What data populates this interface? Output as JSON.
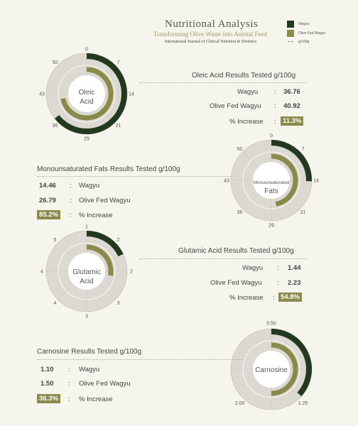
{
  "header": {
    "title": "Nutritional Analysis",
    "subtitle": "Transforming Olive Waste into Animal Feed",
    "journal": "International Journal of Clinical Nutrition & Dietetics"
  },
  "legend": {
    "wagyu": "Wagyu",
    "olive": "Olive Fed Wagyu",
    "unit": "g/100g",
    "wagyu_color": "#23391f",
    "olive_color": "#8a8a4a"
  },
  "sections": [
    {
      "title": "Oleic Acid Results Tested g/100g",
      "center_label_1": "Oleic",
      "center_label_2": "Acid",
      "rows": [
        {
          "label": "Wagyu",
          "value": "36.76"
        },
        {
          "label": "Olive Fed Wagyu",
          "value": "40.92"
        },
        {
          "label": "% Increase",
          "value": "11.3%"
        }
      ]
    },
    {
      "title": "Monounsaturated Fats Results Tested g/100g",
      "center_label_1": "Monounsaturated",
      "center_label_2": "Fats",
      "rows": [
        {
          "label": "Wagyu",
          "value": "14.46"
        },
        {
          "label": "Olive Fed Wagyu",
          "value": "26.79"
        },
        {
          "label": "% Increase",
          "value": "85.2%"
        }
      ]
    },
    {
      "title": "Glutamic Acid Results Tested g/100g",
      "center_label_1": "Glutamic",
      "center_label_2": "Acid",
      "rows": [
        {
          "label": "Wagyu",
          "value": "1.44"
        },
        {
          "label": "Olive Fed Wagyu",
          "value": "2.23"
        },
        {
          "label": "% Increase",
          "value": "54.8%"
        }
      ]
    },
    {
      "title": "Carnosine Results Tested g/100g",
      "center_label_1": "Carnosine",
      "center_label_2": "",
      "rows": [
        {
          "label": "Wagyu",
          "value": "1.10"
        },
        {
          "label": "Olive Fed Wagyu",
          "value": "1.50"
        },
        {
          "label": "% Increase",
          "value": "36.3%"
        }
      ]
    }
  ],
  "chart_data": [
    {
      "type": "radial_bar",
      "title": "Oleic Acid Results Tested g/100g",
      "max": 57,
      "ticks": [
        "0",
        "7",
        "14",
        "21",
        "29",
        "36",
        "43",
        "50"
      ],
      "series": [
        {
          "name": "Wagyu",
          "values": [
            36.76
          ]
        },
        {
          "name": "Olive Fed Wagyu",
          "values": [
            40.92
          ]
        }
      ],
      "percent_increase": 11.3
    },
    {
      "type": "radial_bar",
      "title": "Monounsaturated Fats Results Tested g/100g",
      "max": 57,
      "ticks": [
        "0",
        "7",
        "14",
        "21",
        "29",
        "36",
        "43",
        "50"
      ],
      "series": [
        {
          "name": "Wagyu",
          "values": [
            14.46
          ]
        },
        {
          "name": "Olive Fed Wagyu",
          "values": [
            26.79
          ]
        }
      ],
      "percent_increase": 85.2
    },
    {
      "type": "radial_bar",
      "title": "Glutamic Acid Results Tested g/100g",
      "max": 8,
      "ticks": [
        "1",
        "2",
        "2",
        "3",
        "3",
        "4",
        "4",
        "5"
      ],
      "series": [
        {
          "name": "Wagyu",
          "values": [
            1.44
          ]
        },
        {
          "name": "Olive Fed Wagyu",
          "values": [
            2.23
          ]
        }
      ],
      "percent_increase": 54.8
    },
    {
      "type": "radial_bar",
      "title": "Carnosine Results Tested g/100g",
      "max": 3,
      "ticks": [
        "0.50",
        "1.25",
        "2.00"
      ],
      "series": [
        {
          "name": "Wagyu",
          "values": [
            1.1
          ]
        },
        {
          "name": "Olive Fed Wagyu",
          "values": [
            1.5
          ]
        }
      ],
      "percent_increase": 36.3
    }
  ]
}
